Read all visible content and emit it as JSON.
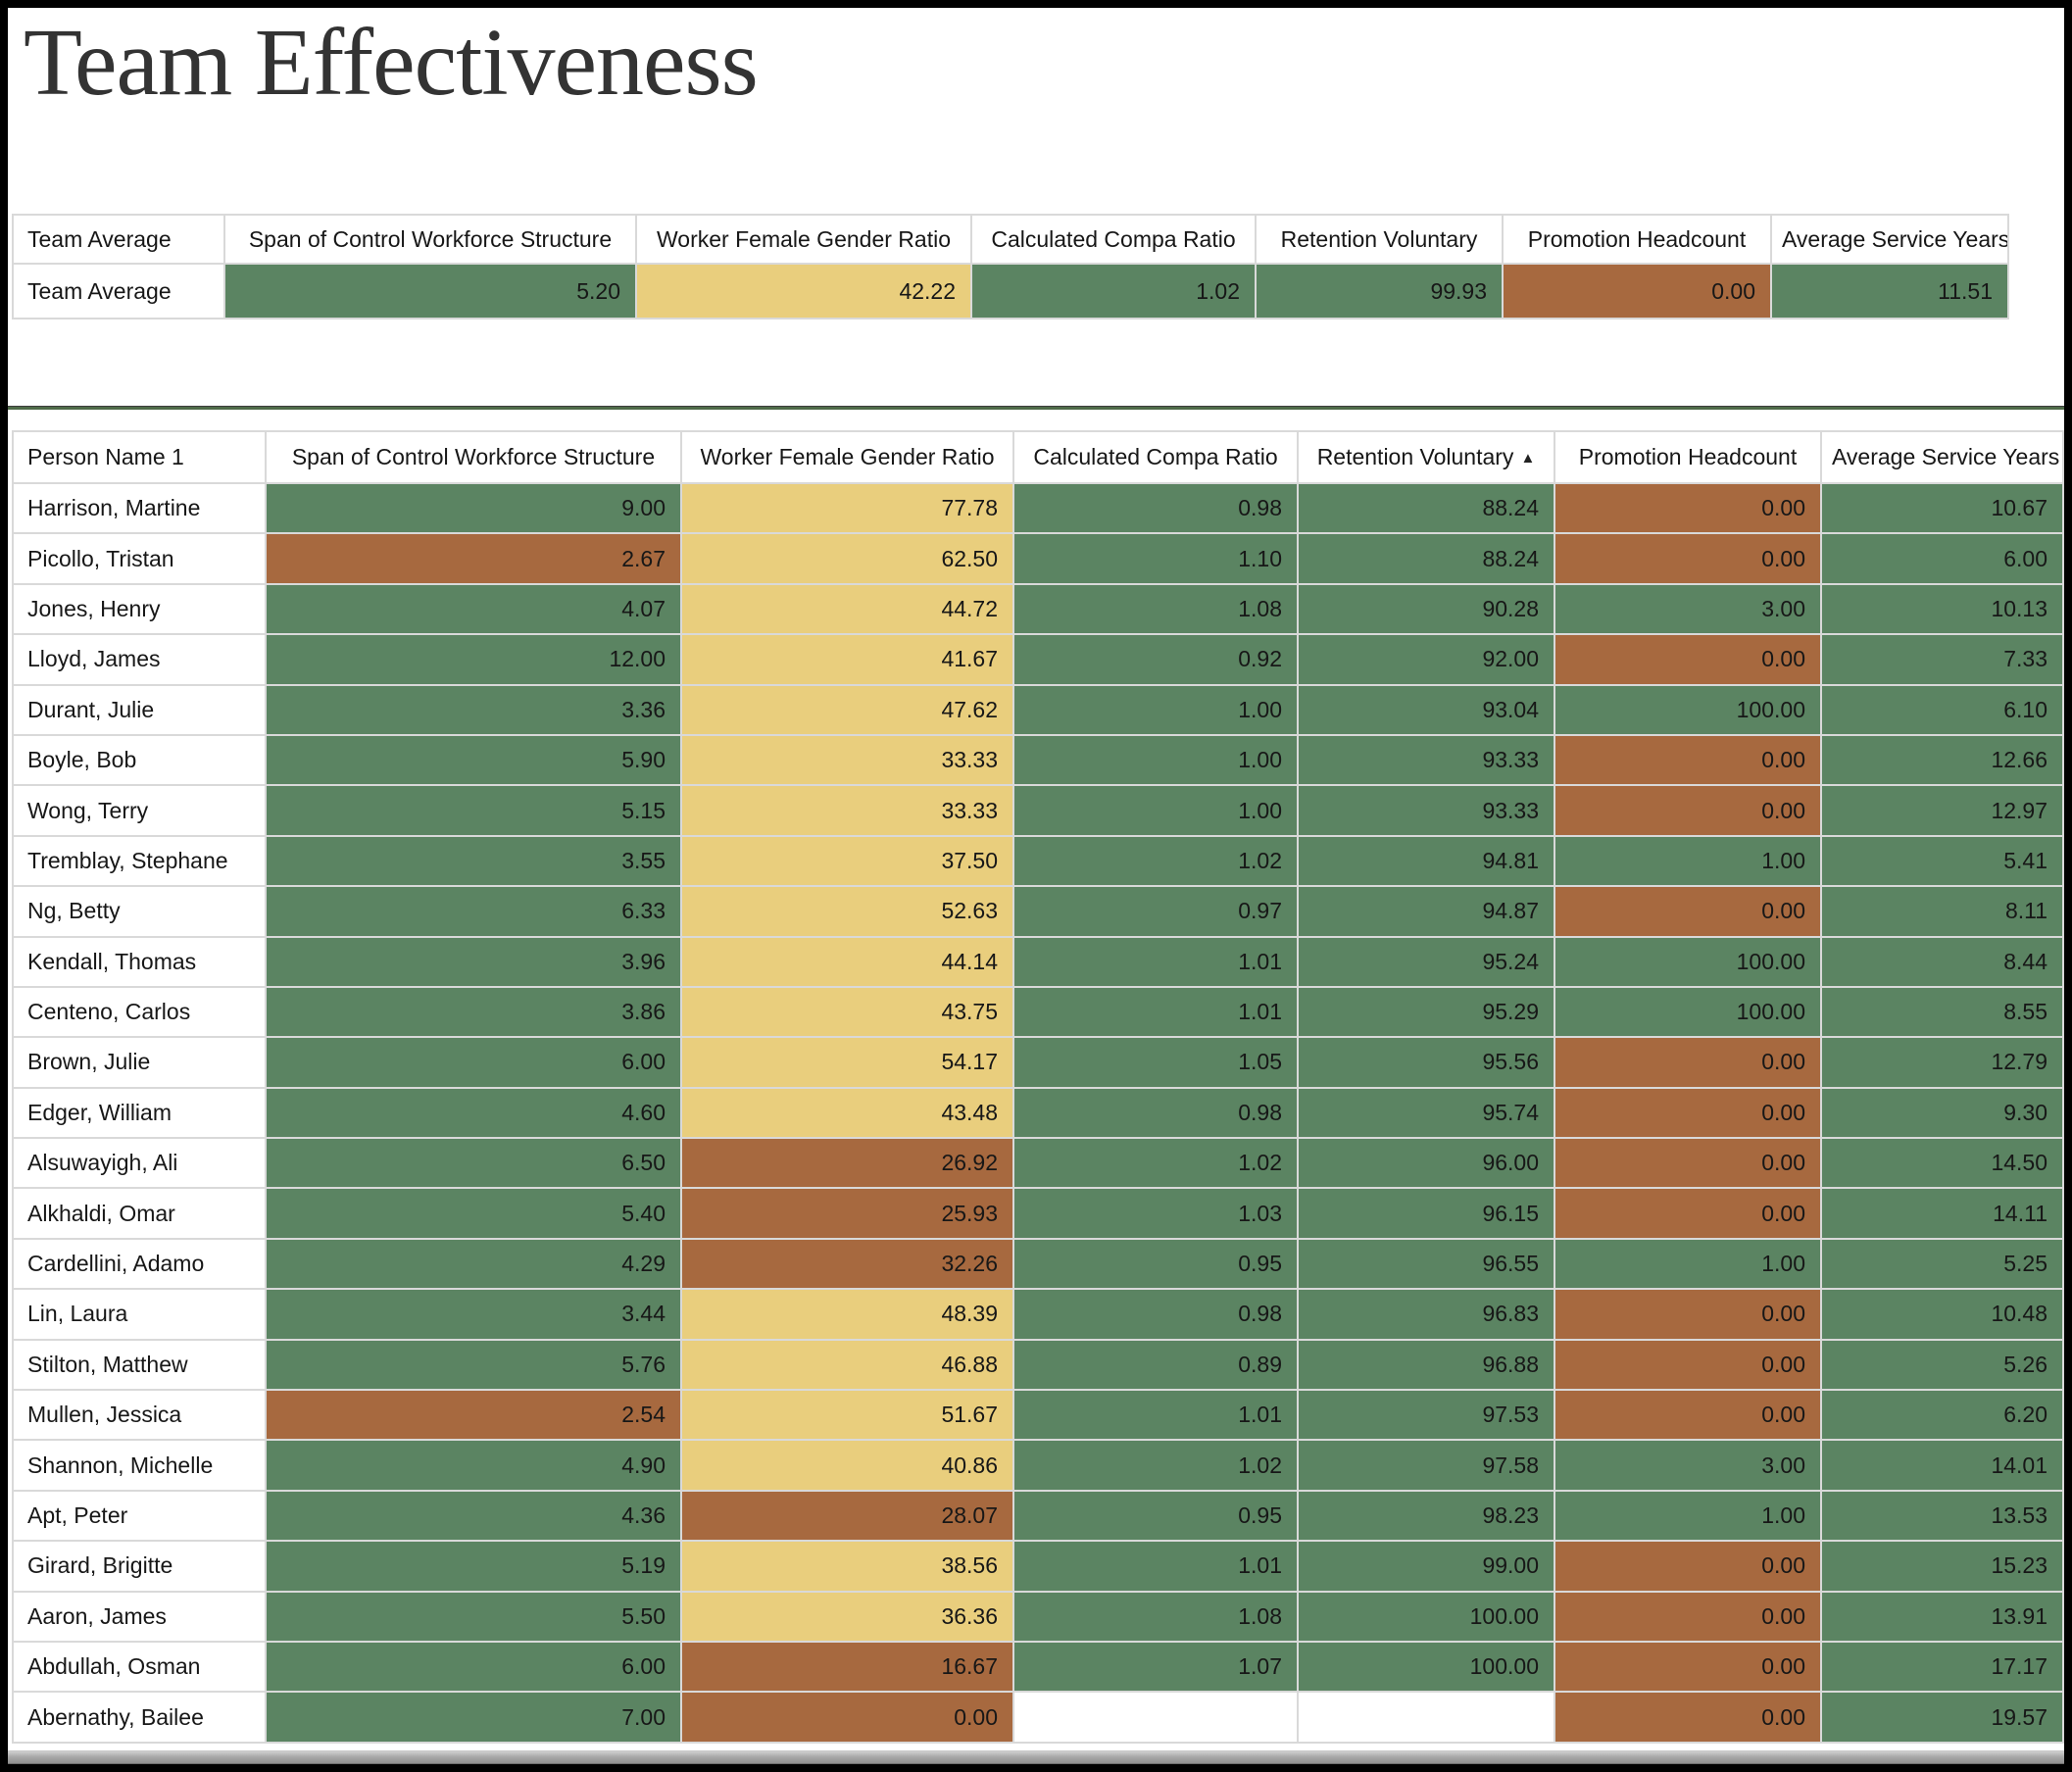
{
  "page": {
    "title": "Team Effectiveness"
  },
  "colors": {
    "green": "#5b8462",
    "yellow": "#e9ce7d",
    "brown": "#a7693f",
    "grid": "#d9d9d9"
  },
  "summary_table": {
    "columns": [
      "Team Average",
      "Span of Control Workforce Structure",
      "Worker Female Gender Ratio",
      "Calculated Compa Ratio",
      "Retention Voluntary",
      "Promotion Headcount",
      "Average Service Years"
    ],
    "row_label": "Team Average",
    "cells": [
      {
        "value": "5.20",
        "color": "green"
      },
      {
        "value": "42.22",
        "color": "yellow"
      },
      {
        "value": "1.02",
        "color": "green"
      },
      {
        "value": "99.93",
        "color": "green"
      },
      {
        "value": "0.00",
        "color": "brown"
      },
      {
        "value": "11.51",
        "color": "green"
      }
    ]
  },
  "main_table": {
    "columns": [
      "Person Name 1",
      "Span of Control Workforce Structure",
      "Worker Female Gender Ratio",
      "Calculated Compa Ratio",
      "Retention Voluntary",
      "Promotion Headcount",
      "Average Service Years"
    ],
    "sort_column_index": 4,
    "sort_direction": "ascending",
    "sort_icon": "▲",
    "rows": [
      {
        "name": "Harrison, Martine",
        "cells": [
          {
            "value": "9.00",
            "color": "green"
          },
          {
            "value": "77.78",
            "color": "yellow"
          },
          {
            "value": "0.98",
            "color": "green"
          },
          {
            "value": "88.24",
            "color": "green"
          },
          {
            "value": "0.00",
            "color": "brown"
          },
          {
            "value": "10.67",
            "color": "green"
          }
        ]
      },
      {
        "name": "Picollo, Tristan",
        "cells": [
          {
            "value": "2.67",
            "color": "brown"
          },
          {
            "value": "62.50",
            "color": "yellow"
          },
          {
            "value": "1.10",
            "color": "green"
          },
          {
            "value": "88.24",
            "color": "green"
          },
          {
            "value": "0.00",
            "color": "brown"
          },
          {
            "value": "6.00",
            "color": "green"
          }
        ]
      },
      {
        "name": "Jones, Henry",
        "cells": [
          {
            "value": "4.07",
            "color": "green"
          },
          {
            "value": "44.72",
            "color": "yellow"
          },
          {
            "value": "1.08",
            "color": "green"
          },
          {
            "value": "90.28",
            "color": "green"
          },
          {
            "value": "3.00",
            "color": "green"
          },
          {
            "value": "10.13",
            "color": "green"
          }
        ]
      },
      {
        "name": "Lloyd, James",
        "cells": [
          {
            "value": "12.00",
            "color": "green"
          },
          {
            "value": "41.67",
            "color": "yellow"
          },
          {
            "value": "0.92",
            "color": "green"
          },
          {
            "value": "92.00",
            "color": "green"
          },
          {
            "value": "0.00",
            "color": "brown"
          },
          {
            "value": "7.33",
            "color": "green"
          }
        ]
      },
      {
        "name": "Durant, Julie",
        "cells": [
          {
            "value": "3.36",
            "color": "green"
          },
          {
            "value": "47.62",
            "color": "yellow"
          },
          {
            "value": "1.00",
            "color": "green"
          },
          {
            "value": "93.04",
            "color": "green"
          },
          {
            "value": "100.00",
            "color": "green"
          },
          {
            "value": "6.10",
            "color": "green"
          }
        ]
      },
      {
        "name": "Boyle, Bob",
        "cells": [
          {
            "value": "5.90",
            "color": "green"
          },
          {
            "value": "33.33",
            "color": "yellow"
          },
          {
            "value": "1.00",
            "color": "green"
          },
          {
            "value": "93.33",
            "color": "green"
          },
          {
            "value": "0.00",
            "color": "brown"
          },
          {
            "value": "12.66",
            "color": "green"
          }
        ]
      },
      {
        "name": "Wong, Terry",
        "cells": [
          {
            "value": "5.15",
            "color": "green"
          },
          {
            "value": "33.33",
            "color": "yellow"
          },
          {
            "value": "1.00",
            "color": "green"
          },
          {
            "value": "93.33",
            "color": "green"
          },
          {
            "value": "0.00",
            "color": "brown"
          },
          {
            "value": "12.97",
            "color": "green"
          }
        ]
      },
      {
        "name": "Tremblay, Stephane",
        "cells": [
          {
            "value": "3.55",
            "color": "green"
          },
          {
            "value": "37.50",
            "color": "yellow"
          },
          {
            "value": "1.02",
            "color": "green"
          },
          {
            "value": "94.81",
            "color": "green"
          },
          {
            "value": "1.00",
            "color": "green"
          },
          {
            "value": "5.41",
            "color": "green"
          }
        ]
      },
      {
        "name": "Ng, Betty",
        "cells": [
          {
            "value": "6.33",
            "color": "green"
          },
          {
            "value": "52.63",
            "color": "yellow"
          },
          {
            "value": "0.97",
            "color": "green"
          },
          {
            "value": "94.87",
            "color": "green"
          },
          {
            "value": "0.00",
            "color": "brown"
          },
          {
            "value": "8.11",
            "color": "green"
          }
        ]
      },
      {
        "name": "Kendall, Thomas",
        "cells": [
          {
            "value": "3.96",
            "color": "green"
          },
          {
            "value": "44.14",
            "color": "yellow"
          },
          {
            "value": "1.01",
            "color": "green"
          },
          {
            "value": "95.24",
            "color": "green"
          },
          {
            "value": "100.00",
            "color": "green"
          },
          {
            "value": "8.44",
            "color": "green"
          }
        ]
      },
      {
        "name": "Centeno, Carlos",
        "cells": [
          {
            "value": "3.86",
            "color": "green"
          },
          {
            "value": "43.75",
            "color": "yellow"
          },
          {
            "value": "1.01",
            "color": "green"
          },
          {
            "value": "95.29",
            "color": "green"
          },
          {
            "value": "100.00",
            "color": "green"
          },
          {
            "value": "8.55",
            "color": "green"
          }
        ]
      },
      {
        "name": "Brown, Julie",
        "cells": [
          {
            "value": "6.00",
            "color": "green"
          },
          {
            "value": "54.17",
            "color": "yellow"
          },
          {
            "value": "1.05",
            "color": "green"
          },
          {
            "value": "95.56",
            "color": "green"
          },
          {
            "value": "0.00",
            "color": "brown"
          },
          {
            "value": "12.79",
            "color": "green"
          }
        ]
      },
      {
        "name": "Edger, William",
        "cells": [
          {
            "value": "4.60",
            "color": "green"
          },
          {
            "value": "43.48",
            "color": "yellow"
          },
          {
            "value": "0.98",
            "color": "green"
          },
          {
            "value": "95.74",
            "color": "green"
          },
          {
            "value": "0.00",
            "color": "brown"
          },
          {
            "value": "9.30",
            "color": "green"
          }
        ]
      },
      {
        "name": "Alsuwayigh, Ali",
        "cells": [
          {
            "value": "6.50",
            "color": "green"
          },
          {
            "value": "26.92",
            "color": "brown"
          },
          {
            "value": "1.02",
            "color": "green"
          },
          {
            "value": "96.00",
            "color": "green"
          },
          {
            "value": "0.00",
            "color": "brown"
          },
          {
            "value": "14.50",
            "color": "green"
          }
        ]
      },
      {
        "name": "Alkhaldi, Omar",
        "cells": [
          {
            "value": "5.40",
            "color": "green"
          },
          {
            "value": "25.93",
            "color": "brown"
          },
          {
            "value": "1.03",
            "color": "green"
          },
          {
            "value": "96.15",
            "color": "green"
          },
          {
            "value": "0.00",
            "color": "brown"
          },
          {
            "value": "14.11",
            "color": "green"
          }
        ]
      },
      {
        "name": "Cardellini, Adamo",
        "cells": [
          {
            "value": "4.29",
            "color": "green"
          },
          {
            "value": "32.26",
            "color": "brown"
          },
          {
            "value": "0.95",
            "color": "green"
          },
          {
            "value": "96.55",
            "color": "green"
          },
          {
            "value": "1.00",
            "color": "green"
          },
          {
            "value": "5.25",
            "color": "green"
          }
        ]
      },
      {
        "name": "Lin, Laura",
        "cells": [
          {
            "value": "3.44",
            "color": "green"
          },
          {
            "value": "48.39",
            "color": "yellow"
          },
          {
            "value": "0.98",
            "color": "green"
          },
          {
            "value": "96.83",
            "color": "green"
          },
          {
            "value": "0.00",
            "color": "brown"
          },
          {
            "value": "10.48",
            "color": "green"
          }
        ]
      },
      {
        "name": "Stilton, Matthew",
        "cells": [
          {
            "value": "5.76",
            "color": "green"
          },
          {
            "value": "46.88",
            "color": "yellow"
          },
          {
            "value": "0.89",
            "color": "green"
          },
          {
            "value": "96.88",
            "color": "green"
          },
          {
            "value": "0.00",
            "color": "brown"
          },
          {
            "value": "5.26",
            "color": "green"
          }
        ]
      },
      {
        "name": "Mullen, Jessica",
        "cells": [
          {
            "value": "2.54",
            "color": "brown"
          },
          {
            "value": "51.67",
            "color": "yellow"
          },
          {
            "value": "1.01",
            "color": "green"
          },
          {
            "value": "97.53",
            "color": "green"
          },
          {
            "value": "0.00",
            "color": "brown"
          },
          {
            "value": "6.20",
            "color": "green"
          }
        ]
      },
      {
        "name": "Shannon, Michelle",
        "cells": [
          {
            "value": "4.90",
            "color": "green"
          },
          {
            "value": "40.86",
            "color": "yellow"
          },
          {
            "value": "1.02",
            "color": "green"
          },
          {
            "value": "97.58",
            "color": "green"
          },
          {
            "value": "3.00",
            "color": "green"
          },
          {
            "value": "14.01",
            "color": "green"
          }
        ]
      },
      {
        "name": "Apt, Peter",
        "cells": [
          {
            "value": "4.36",
            "color": "green"
          },
          {
            "value": "28.07",
            "color": "brown"
          },
          {
            "value": "0.95",
            "color": "green"
          },
          {
            "value": "98.23",
            "color": "green"
          },
          {
            "value": "1.00",
            "color": "green"
          },
          {
            "value": "13.53",
            "color": "green"
          }
        ]
      },
      {
        "name": "Girard, Brigitte",
        "cells": [
          {
            "value": "5.19",
            "color": "green"
          },
          {
            "value": "38.56",
            "color": "yellow"
          },
          {
            "value": "1.01",
            "color": "green"
          },
          {
            "value": "99.00",
            "color": "green"
          },
          {
            "value": "0.00",
            "color": "brown"
          },
          {
            "value": "15.23",
            "color": "green"
          }
        ]
      },
      {
        "name": "Aaron, James",
        "cells": [
          {
            "value": "5.50",
            "color": "green"
          },
          {
            "value": "36.36",
            "color": "yellow"
          },
          {
            "value": "1.08",
            "color": "green"
          },
          {
            "value": "100.00",
            "color": "green"
          },
          {
            "value": "0.00",
            "color": "brown"
          },
          {
            "value": "13.91",
            "color": "green"
          }
        ]
      },
      {
        "name": "Abdullah, Osman",
        "cells": [
          {
            "value": "6.00",
            "color": "green"
          },
          {
            "value": "16.67",
            "color": "brown"
          },
          {
            "value": "1.07",
            "color": "green"
          },
          {
            "value": "100.00",
            "color": "green"
          },
          {
            "value": "0.00",
            "color": "brown"
          },
          {
            "value": "17.17",
            "color": "green"
          }
        ]
      },
      {
        "name": "Abernathy, Bailee",
        "cells": [
          {
            "value": "7.00",
            "color": "green"
          },
          {
            "value": "0.00",
            "color": "brown"
          },
          {
            "value": "",
            "color": "blank"
          },
          {
            "value": "",
            "color": "blank"
          },
          {
            "value": "0.00",
            "color": "brown"
          },
          {
            "value": "19.57",
            "color": "green"
          }
        ]
      }
    ]
  }
}
